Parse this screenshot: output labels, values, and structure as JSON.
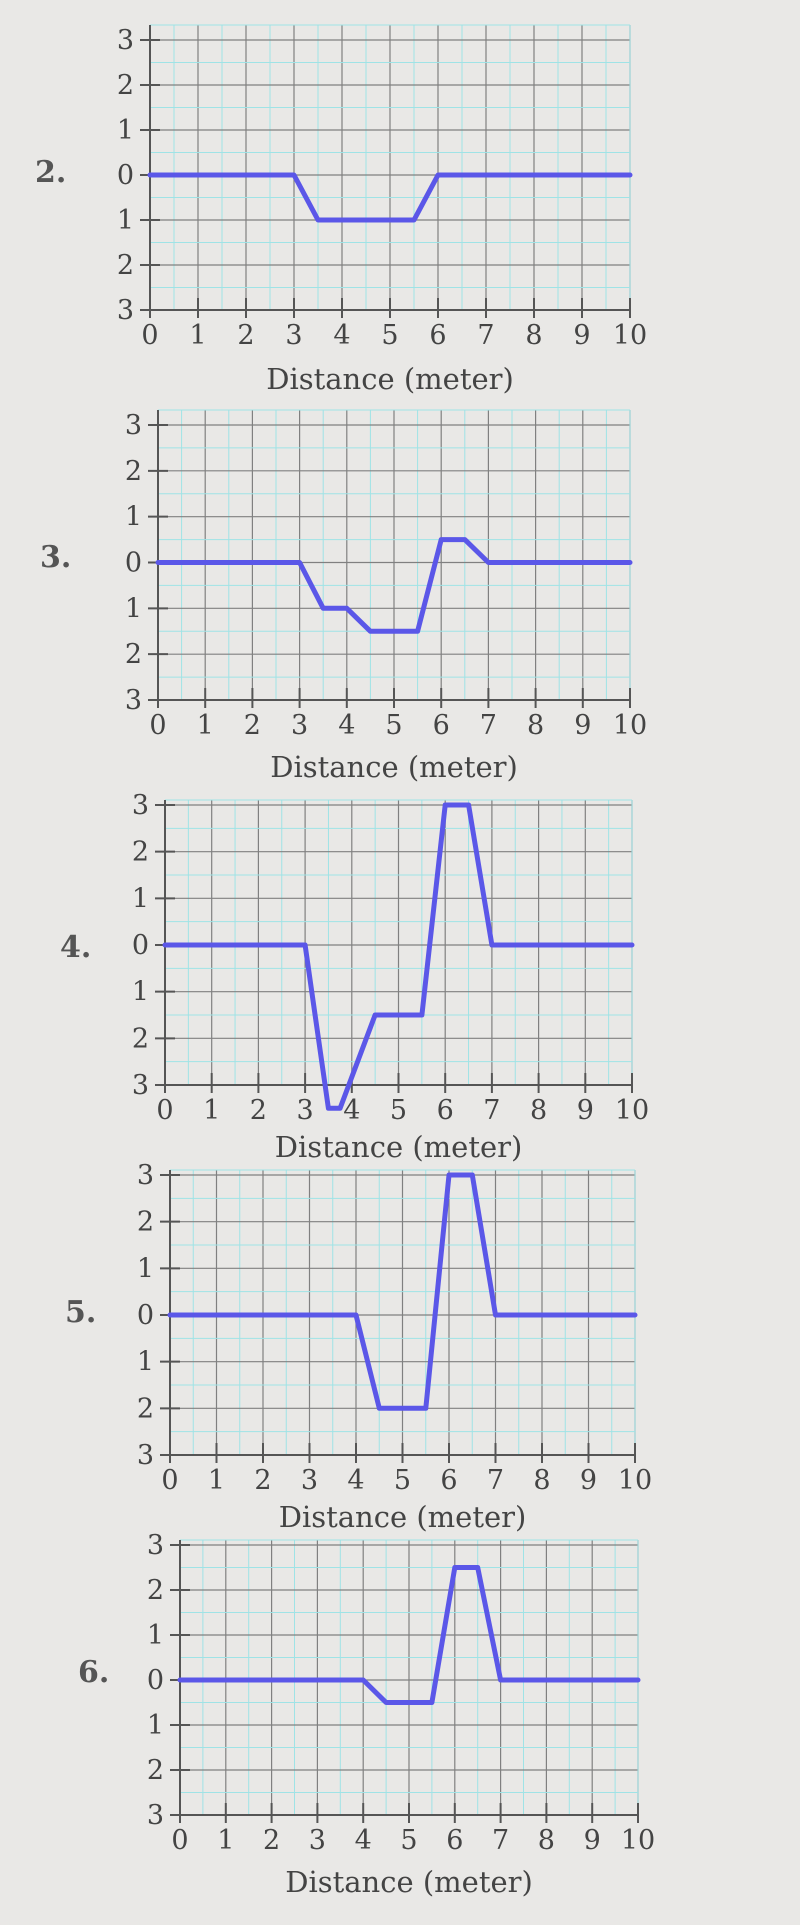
{
  "chart_data": [
    {
      "type": "line",
      "number": "2.",
      "xlabel": "Distance (meter)",
      "ylabel": "",
      "xlim": [
        0,
        10
      ],
      "ylim": [
        -3,
        3
      ],
      "x_ticks": [
        "0",
        "1",
        "2",
        "3",
        "4",
        "5",
        "6",
        "7",
        "8",
        "9",
        "10"
      ],
      "y_ticks": [
        "3",
        "2",
        "1",
        "0",
        "1",
        "2",
        "3"
      ],
      "grid": true,
      "color": "#5b57e8",
      "series": [
        {
          "x": [
            0,
            3,
            3.5,
            5.5,
            6,
            10
          ],
          "y": [
            0,
            0,
            -1,
            -1,
            0,
            0
          ]
        }
      ]
    },
    {
      "type": "line",
      "number": "3.",
      "xlabel": "Distance (meter)",
      "ylabel": "",
      "xlim": [
        0,
        10
      ],
      "ylim": [
        -3,
        3
      ],
      "x_ticks": [
        "0",
        "1",
        "2",
        "3",
        "4",
        "5",
        "6",
        "7",
        "8",
        "9",
        "10"
      ],
      "y_ticks": [
        "3",
        "2",
        "1",
        "0",
        "1",
        "2",
        "3"
      ],
      "grid": true,
      "color": "#5b57e8",
      "series": [
        {
          "x": [
            0,
            3,
            3.5,
            4,
            4.5,
            5.5,
            6,
            6.5,
            7,
            10
          ],
          "y": [
            0,
            0,
            -1,
            -1,
            -1.5,
            -1.5,
            0.5,
            0.5,
            0,
            0
          ]
        }
      ]
    },
    {
      "type": "line",
      "number": "4.",
      "xlabel": "Distance (meter)",
      "ylabel": "",
      "xlim": [
        0,
        10
      ],
      "ylim": [
        -3,
        3
      ],
      "x_ticks": [
        "0",
        "1",
        "2",
        "3",
        "4",
        "5",
        "6",
        "7",
        "8",
        "9",
        "10"
      ],
      "y_ticks": [
        "3",
        "2",
        "1",
        "0",
        "1",
        "2",
        "3"
      ],
      "grid": true,
      "color": "#5b57e8",
      "series": [
        {
          "x": [
            0,
            3,
            3.5,
            3.75,
            4.5,
            5.5,
            6,
            6.5,
            7,
            10
          ],
          "y": [
            0,
            0,
            -3.5,
            -3.5,
            -1.5,
            -1.5,
            3,
            3,
            0,
            0
          ]
        }
      ]
    },
    {
      "type": "line",
      "number": "5.",
      "xlabel": "Distance (meter)",
      "ylabel": "",
      "xlim": [
        0,
        10
      ],
      "ylim": [
        -3,
        3
      ],
      "x_ticks": [
        "0",
        "1",
        "2",
        "3",
        "4",
        "5",
        "6",
        "7",
        "8",
        "9",
        "10"
      ],
      "y_ticks": [
        "3",
        "2",
        "1",
        "0",
        "1",
        "2",
        "3"
      ],
      "grid": true,
      "color": "#5b57e8",
      "series": [
        {
          "x": [
            0,
            4,
            4.5,
            5.5,
            6,
            6.5,
            7,
            10
          ],
          "y": [
            0,
            0,
            -2,
            -2,
            3,
            3,
            0,
            0
          ]
        }
      ]
    },
    {
      "type": "line",
      "number": "6.",
      "xlabel": "Distance (meter)",
      "ylabel": "",
      "xlim": [
        0,
        10
      ],
      "ylim": [
        -3,
        3
      ],
      "x_ticks": [
        "0",
        "1",
        "2",
        "3",
        "4",
        "5",
        "6",
        "7",
        "8",
        "9",
        "10"
      ],
      "y_ticks": [
        "3",
        "2",
        "1",
        "0",
        "1",
        "2",
        "3"
      ],
      "grid": true,
      "color": "#5b57e8",
      "series": [
        {
          "x": [
            0,
            4,
            4.5,
            5.5,
            6,
            6.5,
            7,
            10
          ],
          "y": [
            0,
            0,
            -0.5,
            -0.5,
            2.5,
            2.5,
            0,
            0
          ]
        }
      ]
    }
  ]
}
